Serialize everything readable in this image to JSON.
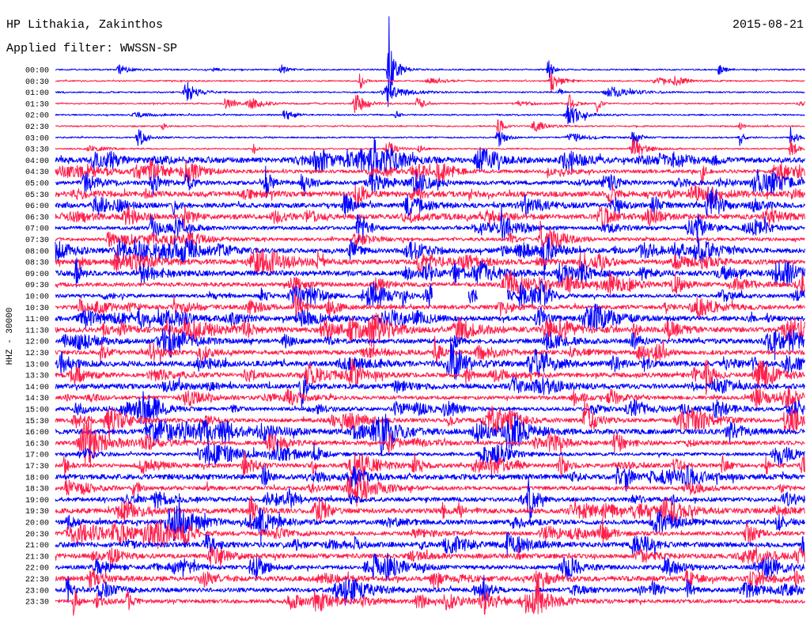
{
  "chart_data": {
    "type": "line",
    "title": "HP Lithakia, Zakinthos",
    "date": "2015-08-21",
    "subtitle": "Applied filter: WWSSN-SP",
    "ylabel": "HHZ - 30000",
    "xlabel": "",
    "grid": false,
    "trace_colors": [
      "#0000ff",
      "#ff1f4b"
    ],
    "row_labels": [
      "00:00",
      "00:30",
      "01:00",
      "01:30",
      "02:00",
      "02:30",
      "03:00",
      "03:30",
      "04:00",
      "04:30",
      "05:00",
      "05:30",
      "06:00",
      "06:30",
      "07:00",
      "07:30",
      "08:00",
      "08:30",
      "09:00",
      "09:30",
      "10:00",
      "10:30",
      "11:00",
      "11:30",
      "12:00",
      "12:30",
      "13:00",
      "13:30",
      "14:00",
      "14:30",
      "15:00",
      "15:30",
      "16:00",
      "16:30",
      "17:00",
      "17:30",
      "18:00",
      "18:30",
      "19:00",
      "19:30",
      "20:00",
      "20:30",
      "21:00",
      "21:30",
      "22:00",
      "22:30",
      "23:00",
      "23:30"
    ]
  }
}
